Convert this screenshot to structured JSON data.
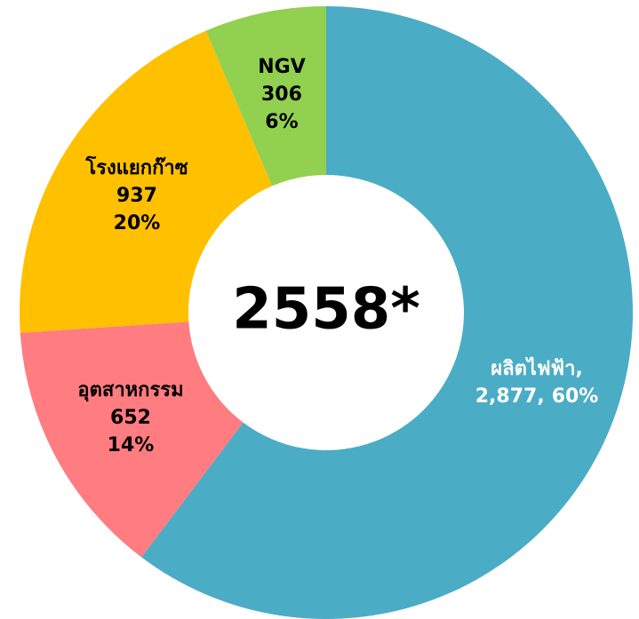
{
  "chart_data": {
    "type": "pie",
    "donut": true,
    "center_label": "2558*",
    "categories": [
      "ผลิตไฟฟ้า,",
      "อุตสาหกรรม",
      "โรงแยกก๊าซ",
      "NGV"
    ],
    "values": [
      2877,
      652,
      937,
      306
    ],
    "value_labels": [
      "2,877,",
      "652",
      "937",
      "306"
    ],
    "percent_labels": [
      "60%",
      "14%",
      "20%",
      "6%"
    ],
    "colors": [
      "#4bacc6",
      "#ff7c80",
      "#ffc000",
      "#92d050"
    ],
    "label_colors": [
      "#ffffff",
      "#000000",
      "#000000",
      "#000000"
    ]
  }
}
